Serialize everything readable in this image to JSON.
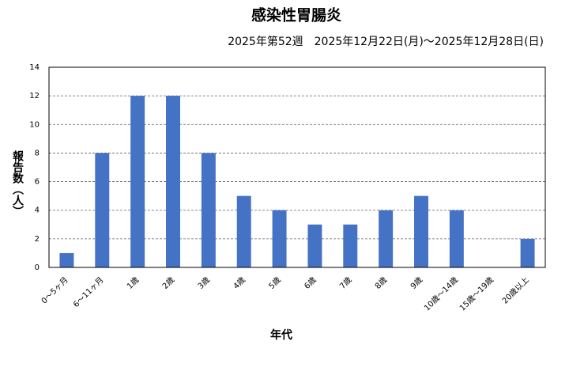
{
  "chart_data": {
    "type": "bar",
    "title": "感染性胃腸炎",
    "subtitle": "2025年第52週　2025年12月22日(月)～2025年12月28日(日)",
    "y_label": "報告数（人）",
    "x_label": "年代",
    "categories": [
      "0～5ヶ月",
      "6～11ヶ月",
      "1歳",
      "2歳",
      "3歳",
      "4歳",
      "5歳",
      "6歳",
      "7歳",
      "8歳",
      "9歳",
      "10歳～14歳",
      "15歳～19歳",
      "20歳以上"
    ],
    "values": [
      1,
      8,
      12,
      12,
      8,
      5,
      4,
      3,
      3,
      4,
      5,
      4,
      0,
      2
    ],
    "color": "#4472c4",
    "ylim": [
      0,
      14
    ],
    "yticks": [
      0,
      2,
      4,
      6,
      8,
      10,
      12,
      14
    ],
    "grid": true
  }
}
